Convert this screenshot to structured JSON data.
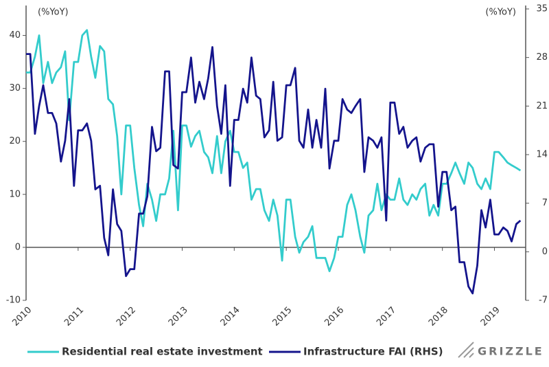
{
  "chart_data": {
    "type": "line",
    "y_label": "(%YoY)",
    "y2_label": "(%YoY)",
    "brand": "GRIZZLE",
    "xlim": [
      2010,
      2019.6
    ],
    "xticks": [
      2010,
      2011,
      2012,
      2013,
      2014,
      2015,
      2016,
      2017,
      2018,
      2019
    ],
    "ylim": [
      -10,
      45
    ],
    "yticks": [
      -10,
      0,
      10,
      20,
      30,
      40
    ],
    "y2lim": [
      -7,
      35
    ],
    "y2ticks": [
      -7,
      0,
      7,
      14,
      21,
      28,
      35
    ],
    "x": [
      2010,
      2010.08,
      2010.17,
      2010.25,
      2010.33,
      2010.42,
      2010.5,
      2010.58,
      2010.67,
      2010.75,
      2010.83,
      2010.92,
      2011,
      2011.08,
      2011.17,
      2011.25,
      2011.33,
      2011.42,
      2011.5,
      2011.58,
      2011.67,
      2011.75,
      2011.83,
      2011.92,
      2012,
      2012.08,
      2012.17,
      2012.25,
      2012.33,
      2012.42,
      2012.5,
      2012.58,
      2012.67,
      2012.75,
      2012.83,
      2012.92,
      2013,
      2013.08,
      2013.17,
      2013.25,
      2013.33,
      2013.42,
      2013.5,
      2013.58,
      2013.67,
      2013.75,
      2013.83,
      2013.92,
      2014,
      2014.08,
      2014.17,
      2014.25,
      2014.33,
      2014.42,
      2014.5,
      2014.58,
      2014.67,
      2014.75,
      2014.83,
      2014.92,
      2015,
      2015.08,
      2015.17,
      2015.25,
      2015.33,
      2015.42,
      2015.5,
      2015.58,
      2015.67,
      2015.75,
      2015.83,
      2015.92,
      2016,
      2016.08,
      2016.17,
      2016.25,
      2016.33,
      2016.42,
      2016.5,
      2016.58,
      2016.67,
      2016.75,
      2016.83,
      2016.92,
      2017,
      2017.08,
      2017.17,
      2017.25,
      2017.33,
      2017.42,
      2017.5,
      2017.58,
      2017.67,
      2017.75,
      2017.83,
      2017.92,
      2018,
      2018.08,
      2018.17,
      2018.25,
      2018.33,
      2018.42,
      2018.5,
      2018.58,
      2018.67,
      2018.75,
      2018.83,
      2018.92,
      2019,
      2019.08,
      2019.17,
      2019.25,
      2019.33,
      2019.42,
      2019.5
    ],
    "series": [
      {
        "name": "Residential real estate investment",
        "color": "#33cccc",
        "values": [
          33,
          33,
          36,
          40,
          31,
          35,
          31,
          33,
          34,
          37,
          24,
          35,
          35,
          40,
          41,
          36,
          32,
          38,
          37,
          28,
          27,
          21,
          10,
          23,
          23,
          15,
          8,
          4,
          12,
          9,
          5,
          10,
          10,
          13,
          22,
          7,
          23,
          23,
          19,
          21,
          22,
          18,
          17,
          14,
          21,
          14,
          20,
          22,
          18,
          18,
          15,
          16,
          9,
          11,
          11,
          7,
          5,
          9,
          6,
          -2.5,
          9,
          9,
          2,
          -1,
          1,
          2,
          4,
          -2,
          -2,
          -2,
          -4.5,
          -2,
          2,
          2,
          8,
          10,
          7,
          2,
          -1,
          6,
          7,
          12,
          7,
          10,
          9,
          9,
          13,
          9,
          8,
          10,
          9,
          11,
          12,
          6,
          8,
          6,
          12,
          12,
          14,
          16,
          14,
          12,
          16,
          15,
          12,
          11,
          13,
          11,
          18,
          18,
          17,
          16,
          15.5,
          15,
          14.5
        ]
      },
      {
        "name": "Infrastructure FAI (RHS)",
        "color": "#14148c",
        "axis": "y2",
        "values": [
          28.5,
          28.5,
          17,
          21,
          24,
          20,
          20,
          18.5,
          13,
          16,
          22,
          9.5,
          17.5,
          17.5,
          18.5,
          16,
          9,
          9.5,
          2,
          -0.5,
          9,
          4,
          3,
          -3.5,
          -2.5,
          -2.5,
          5.5,
          5.5,
          8,
          18,
          14.5,
          15,
          26,
          26,
          12.5,
          12,
          23,
          23,
          28,
          21.5,
          24.5,
          22,
          25,
          29.5,
          21,
          17,
          24,
          9.5,
          19,
          19,
          23.5,
          21.5,
          28,
          22.5,
          22,
          16.5,
          17.5,
          24.5,
          16,
          16.5,
          24,
          24,
          26.5,
          16,
          15,
          20.5,
          15,
          19,
          15,
          23.5,
          12,
          16,
          16,
          22,
          20.5,
          20,
          21,
          22,
          11.5,
          16.5,
          16,
          15,
          16.5,
          4.5,
          21.5,
          21.5,
          17,
          18,
          15,
          16,
          16.5,
          13,
          15,
          15.5,
          15.5,
          6.5,
          11.5,
          11.5,
          6,
          6.5,
          -1.5,
          -1.5,
          -5,
          -6,
          -2,
          6,
          3.5,
          7.5,
          2.5,
          2.5,
          3.5,
          3,
          1.5,
          4,
          4.5
        ]
      }
    ]
  }
}
